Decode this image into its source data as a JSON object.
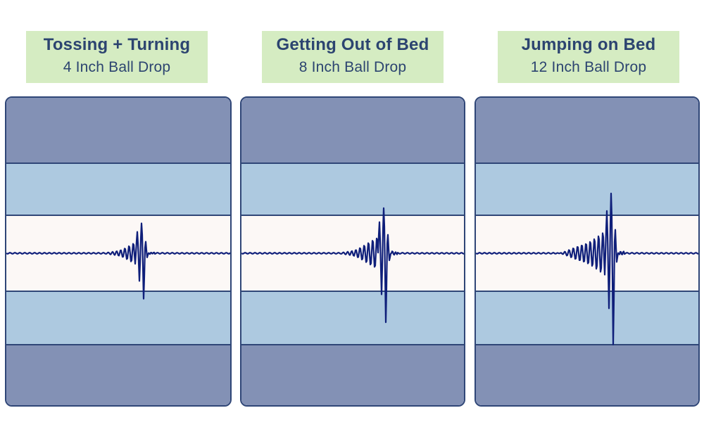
{
  "colors": {
    "label_bg": "#d5ecc2",
    "label_text": "#2c4470",
    "outer_band": "#8391b5",
    "inner_band": "#adc9e0",
    "center_band": "#fcf8f6",
    "border": "#2f4677",
    "wave": "#0f1f7a"
  },
  "chart_data": [
    {
      "type": "line",
      "title": "Tossing + Turning",
      "subtitle": "4 Inch Ball Drop",
      "peak_amplitude": 0.5
    },
    {
      "type": "line",
      "title": "Getting Out of Bed",
      "subtitle": "8 Inch Ball Drop",
      "peak_amplitude": 0.75
    },
    {
      "type": "line",
      "title": "Jumping on Bed",
      "subtitle": "12 Inch Ball Drop",
      "peak_amplitude": 1.0
    }
  ]
}
